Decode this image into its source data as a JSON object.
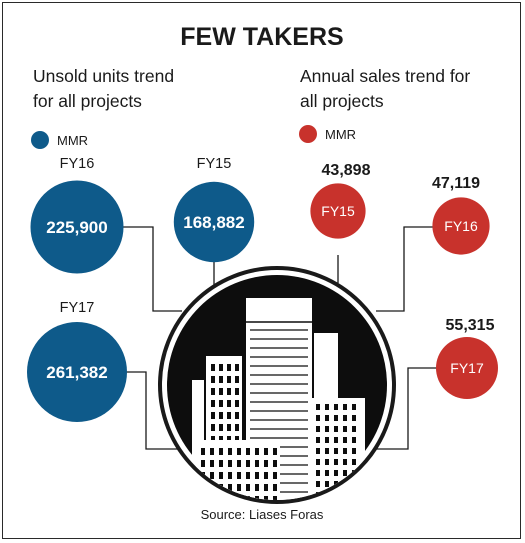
{
  "title": "FEW TAKERS",
  "source": "Source: Liases Foras",
  "colors": {
    "unsold": "#0e5a8a",
    "sales": "#c8322c",
    "text": "#1a1a1a",
    "line": "#1a1a1a"
  },
  "chart_data": [
    {
      "type": "bubble",
      "title": "Unsold units trend for all projects",
      "title_lines": [
        "Unsold units trend",
        "for all projects"
      ],
      "legend": "MMR",
      "series": [
        {
          "name": "MMR",
          "categories": [
            "FY15",
            "FY16",
            "FY17"
          ],
          "values": [
            168882,
            225900,
            261382
          ],
          "value_labels": [
            "168,882",
            "225,900",
            "261,382"
          ]
        }
      ]
    },
    {
      "type": "bubble",
      "title": "Annual sales trend for all projects",
      "title_lines": [
        "Annual sales trend for",
        "all projects"
      ],
      "legend": "MMR",
      "series": [
        {
          "name": "MMR",
          "categories": [
            "FY15",
            "FY16",
            "FY17"
          ],
          "values": [
            43898,
            47119,
            55315
          ],
          "value_labels": [
            "43,898",
            "47,119",
            "55,315"
          ]
        }
      ]
    }
  ]
}
